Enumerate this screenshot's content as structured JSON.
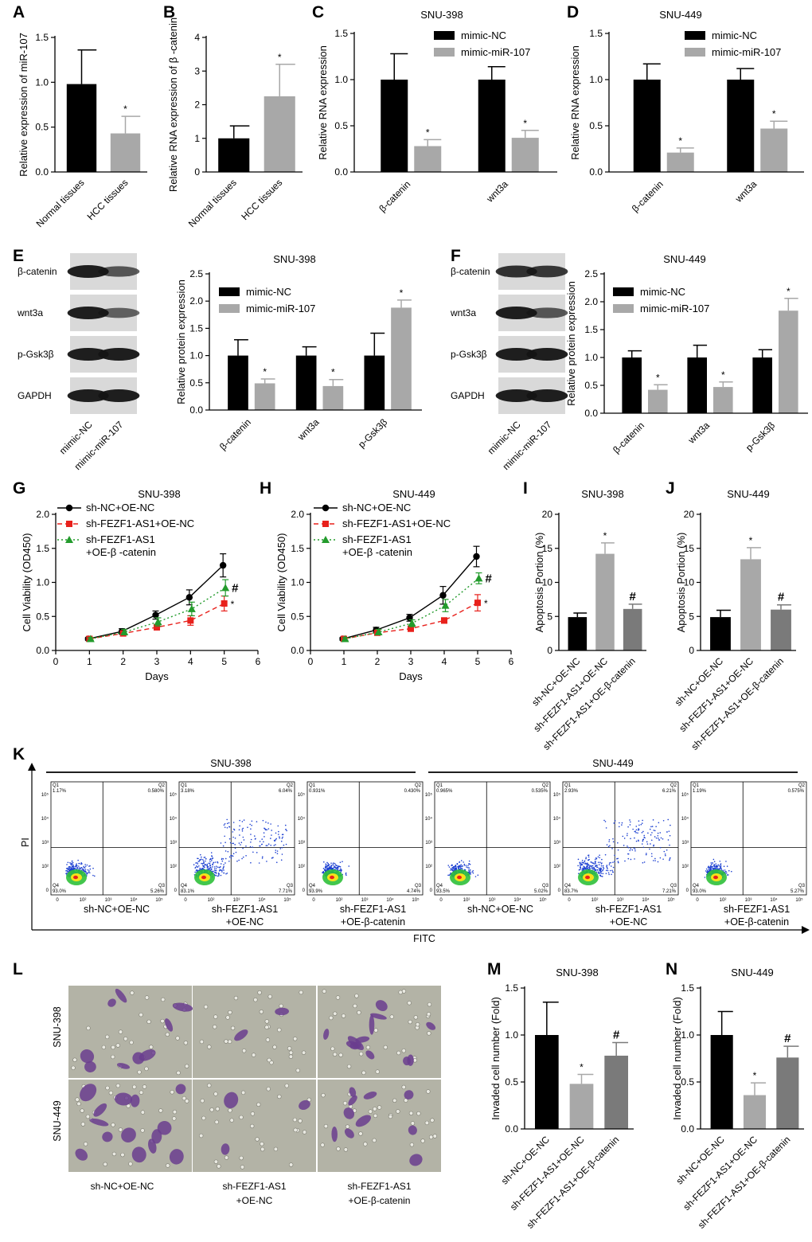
{
  "colors": {
    "black": "#000000",
    "grey": "#a8a8a8",
    "darkgrey": "#7a7a7a",
    "red": "#e8211c",
    "green": "#239b2c"
  },
  "panel_labels": [
    "A",
    "B",
    "C",
    "D",
    "E",
    "F",
    "G",
    "H",
    "I",
    "J",
    "K",
    "L",
    "M",
    "N"
  ],
  "chart_data": [
    {
      "id": "A",
      "type": "bar",
      "title": "",
      "ylabel": "Relative expression of miR-107",
      "ylim": [
        0,
        1.5
      ],
      "yticks": [
        "0.0",
        "0.5",
        "1.0",
        "1.5"
      ],
      "categories": [
        "Normal tissues",
        "HCC tissues"
      ],
      "values": [
        0.98,
        0.43
      ],
      "errors": [
        0.38,
        0.19
      ],
      "marks": [
        "",
        "*"
      ]
    },
    {
      "id": "B",
      "type": "bar",
      "title": "",
      "ylabel": "Relative RNA expression of β -catenin",
      "ylim": [
        0,
        4
      ],
      "yticks": [
        "0",
        "1",
        "2",
        "3",
        "4"
      ],
      "categories": [
        "Normal tissues",
        "HCC tissues"
      ],
      "values": [
        1.0,
        2.25
      ],
      "errors": [
        0.37,
        0.95
      ],
      "marks": [
        "",
        "*"
      ]
    },
    {
      "id": "C",
      "type": "bar",
      "title": "SNU-398",
      "ylabel": "Relative RNA expression",
      "ylim": [
        0,
        1.5
      ],
      "yticks": [
        "0.0",
        "0.5",
        "1.0",
        "1.5"
      ],
      "categories": [
        "β-catenin",
        "wnt3a"
      ],
      "series": [
        {
          "name": "mimic-NC",
          "values": [
            1.0,
            1.0
          ],
          "errors": [
            0.28,
            0.14
          ],
          "marks": [
            "",
            ""
          ]
        },
        {
          "name": "mimic-miR-107",
          "values": [
            0.28,
            0.37
          ],
          "errors": [
            0.07,
            0.08
          ],
          "marks": [
            "*",
            "*"
          ]
        }
      ]
    },
    {
      "id": "D",
      "type": "bar",
      "title": "SNU-449",
      "ylabel": "Relative RNA expression",
      "ylim": [
        0,
        1.5
      ],
      "yticks": [
        "0.0",
        "0.5",
        "1.0",
        "1.5"
      ],
      "categories": [
        "β-catenin",
        "wnt3a"
      ],
      "series": [
        {
          "name": "mimic-NC",
          "values": [
            1.0,
            1.0
          ],
          "errors": [
            0.17,
            0.12
          ],
          "marks": [
            "",
            ""
          ]
        },
        {
          "name": "mimic-miR-107",
          "values": [
            0.21,
            0.47
          ],
          "errors": [
            0.05,
            0.08
          ],
          "marks": [
            "*",
            "*"
          ]
        }
      ]
    },
    {
      "id": "E",
      "type": "bar",
      "title": "SNU-398",
      "ylabel": "Relative protein expression",
      "ylim": [
        0,
        2.5
      ],
      "yticks": [
        "0.0",
        "0.5",
        "1.0",
        "1.5",
        "2.0",
        "2.5"
      ],
      "categories": [
        "β-catenin",
        "wnt3a",
        "p-Gsk3β"
      ],
      "series": [
        {
          "name": "mimic-NC",
          "values": [
            1.0,
            1.0,
            1.0
          ],
          "errors": [
            0.29,
            0.16,
            0.41
          ],
          "marks": [
            "",
            "",
            ""
          ]
        },
        {
          "name": "mimic-miR-107",
          "values": [
            0.49,
            0.44,
            1.88
          ],
          "errors": [
            0.08,
            0.12,
            0.14
          ],
          "marks": [
            "*",
            "*",
            "*"
          ]
        }
      ]
    },
    {
      "id": "F",
      "type": "bar",
      "title": "SNU-449",
      "ylabel": "Relative protein expression",
      "ylim": [
        0,
        2.5
      ],
      "yticks": [
        "0.0",
        "0.5",
        "1.0",
        "1.5",
        "2.0",
        "2.5"
      ],
      "categories": [
        "β-catenin",
        "wnt3a",
        "p-Gsk3β"
      ],
      "series": [
        {
          "name": "mimic-NC",
          "values": [
            1.0,
            1.0,
            1.0
          ],
          "errors": [
            0.12,
            0.22,
            0.14
          ],
          "marks": [
            "",
            "",
            ""
          ]
        },
        {
          "name": "mimic-miR-107",
          "values": [
            0.42,
            0.47,
            1.84
          ],
          "errors": [
            0.09,
            0.09,
            0.22
          ],
          "marks": [
            "*",
            "*",
            "*"
          ]
        }
      ]
    },
    {
      "id": "G",
      "type": "line",
      "title": "SNU-398",
      "xlabel": "Days",
      "ylabel": "Cell Viability (OD450)",
      "xlim": [
        0,
        6
      ],
      "ylim": [
        0,
        2.0
      ],
      "xticks": [
        "0",
        "1",
        "2",
        "3",
        "4",
        "5",
        "6"
      ],
      "yticks": [
        "0.0",
        "0.5",
        "1.0",
        "1.5",
        "2.0"
      ],
      "x": [
        1,
        2,
        3,
        4,
        5
      ],
      "series": [
        {
          "name": "sh-NC+OE-NC",
          "values": [
            0.17,
            0.28,
            0.52,
            0.78,
            1.25
          ],
          "errors": [
            0.02,
            0.04,
            0.06,
            0.11,
            0.17
          ],
          "color": "#000000",
          "marker": "circle",
          "dash": "",
          "mark": ""
        },
        {
          "name": "sh-FEZF1-AS1+OE-NC",
          "values": [
            0.17,
            0.25,
            0.34,
            0.44,
            0.69
          ],
          "errors": [
            0.02,
            0.03,
            0.04,
            0.07,
            0.11
          ],
          "color": "#e8211c",
          "marker": "square",
          "dash": "6,4",
          "mark": "*"
        },
        {
          "name": "sh-FEZF1-AS1 +OE-β -catenin",
          "values": [
            0.17,
            0.27,
            0.42,
            0.61,
            0.92
          ],
          "errors": [
            0.02,
            0.04,
            0.06,
            0.1,
            0.12
          ],
          "color": "#239b2c",
          "marker": "triangle",
          "dash": "2,3",
          "mark": "#"
        }
      ]
    },
    {
      "id": "H",
      "type": "line",
      "title": "SNU-449",
      "xlabel": "Days",
      "ylabel": "Cell Viability (OD450)",
      "xlim": [
        0,
        6
      ],
      "ylim": [
        0,
        2.0
      ],
      "xticks": [
        "0",
        "1",
        "2",
        "3",
        "4",
        "5",
        "6"
      ],
      "yticks": [
        "0.0",
        "0.5",
        "1.0",
        "1.5",
        "2.0"
      ],
      "x": [
        1,
        2,
        3,
        4,
        5
      ],
      "series": [
        {
          "name": "sh-NC+OE-NC",
          "values": [
            0.17,
            0.3,
            0.48,
            0.81,
            1.38
          ],
          "errors": [
            0.02,
            0.04,
            0.05,
            0.13,
            0.15
          ],
          "color": "#000000",
          "marker": "circle",
          "dash": "",
          "mark": ""
        },
        {
          "name": "sh-FEZF1-AS1+OE-NC",
          "values": [
            0.17,
            0.26,
            0.32,
            0.44,
            0.7
          ],
          "errors": [
            0.02,
            0.03,
            0.04,
            0.04,
            0.12
          ],
          "color": "#e8211c",
          "marker": "square",
          "dash": "6,4",
          "mark": "*"
        },
        {
          "name": "sh-FEZF1-AS1 +OE-β -catenin",
          "values": [
            0.17,
            0.27,
            0.4,
            0.66,
            1.06
          ],
          "errors": [
            0.02,
            0.04,
            0.05,
            0.09,
            0.08
          ],
          "color": "#239b2c",
          "marker": "triangle",
          "dash": "2,3",
          "mark": "#"
        }
      ]
    },
    {
      "id": "I",
      "type": "bar",
      "title": "SNU-398",
      "ylabel": "Apoptosis Portion (%)",
      "ylim": [
        0,
        20
      ],
      "yticks": [
        "0",
        "5",
        "10",
        "15",
        "20"
      ],
      "categories": [
        "sh-NC+OE-NC",
        "sh-FEZF1-AS1+OE-NC",
        "sh-FEZF1-AS1+OE-β-catenin"
      ],
      "values": [
        4.9,
        14.2,
        6.1
      ],
      "errors": [
        0.6,
        1.6,
        0.7
      ],
      "marks": [
        "",
        "*",
        "#"
      ]
    },
    {
      "id": "J",
      "type": "bar",
      "title": "SNU-449",
      "ylabel": "Apoptosis Portion (%)",
      "ylim": [
        0,
        20
      ],
      "yticks": [
        "0",
        "5",
        "10",
        "15",
        "20"
      ],
      "categories": [
        "sh-NC+OE-NC",
        "sh-FEZF1-AS1+OE-NC",
        "sh-FEZF1-AS1+OE-β-catenin"
      ],
      "values": [
        4.9,
        13.4,
        6.0
      ],
      "errors": [
        1.0,
        1.7,
        0.7
      ],
      "marks": [
        "",
        "*",
        "#"
      ]
    },
    {
      "id": "M",
      "type": "bar",
      "title": "SNU-398",
      "ylabel": "Invaded cell number (Fold)",
      "ylim": [
        0,
        1.5
      ],
      "yticks": [
        "0.0",
        "0.5",
        "1.0",
        "1.5"
      ],
      "categories": [
        "sh-NC+OE-NC",
        "sh-FEZF1-AS1+OE-NC",
        "sh-FEZF1-AS1+OE-β-catenin"
      ],
      "values": [
        1.0,
        0.48,
        0.78
      ],
      "errors": [
        0.35,
        0.1,
        0.14
      ],
      "marks": [
        "",
        "*",
        "#"
      ]
    },
    {
      "id": "N",
      "type": "bar",
      "title": "SNU-449",
      "ylabel": "Invaded cell number (Fold)",
      "ylim": [
        0,
        1.5
      ],
      "yticks": [
        "0.0",
        "0.5",
        "1.0",
        "1.5"
      ],
      "categories": [
        "sh-NC+OE-NC",
        "sh-FEZF1-AS1+OE-NC",
        "sh-FEZF1-AS1+OE-β-catenin"
      ],
      "values": [
        1.0,
        0.36,
        0.76
      ],
      "errors": [
        0.25,
        0.13,
        0.12
      ],
      "marks": [
        "",
        "*",
        "#"
      ]
    }
  ],
  "blots": {
    "E": {
      "rows": [
        "β-catenin",
        "wnt3a",
        "p-Gsk3β",
        "GAPDH"
      ],
      "lanes": [
        "mimic-NC",
        "mimic-miR-107"
      ]
    },
    "F": {
      "rows": [
        "β-catenin",
        "wnt3a",
        "p-Gsk3β",
        "GAPDH"
      ],
      "lanes": [
        "mimic-NC",
        "mimic-miR-107"
      ]
    }
  },
  "flow": {
    "groups": [
      "SNU-398",
      "SNU-449"
    ],
    "ylabel": "PI",
    "xlabel": "FITC",
    "tick_labels": [
      "0",
      "10²",
      "10³",
      "10⁴",
      "10⁵"
    ],
    "plots": [
      {
        "q1": "1.17%",
        "q2": "0.580%",
        "q3": "5.26%",
        "q4": "93.0%",
        "label1": "sh-NC+OE-NC",
        "label2": ""
      },
      {
        "q1": "3.18%",
        "q2": "6.04%",
        "q3": "7.71%",
        "q4": "83.1%",
        "label1": "sh-FEZF1-AS1",
        "label2": "+OE-NC"
      },
      {
        "q1": "0.931%",
        "q2": "0.430%",
        "q3": "4.74%",
        "q4": "93.9%",
        "label1": "sh-FEZF1-AS1",
        "label2": "+OE-β-catenin"
      },
      {
        "q1": "0.965%",
        "q2": "0.535%",
        "q3": "5.02%",
        "q4": "93.5%",
        "label1": "sh-NC+OE-NC",
        "label2": ""
      },
      {
        "q1": "2.93%",
        "q2": "6.21%",
        "q3": "7.21%",
        "q4": "83.7%",
        "label1": "sh-FEZF1-AS1",
        "label2": "+OE-NC"
      },
      {
        "q1": "1.19%",
        "q2": "0.575%",
        "q3": "5.27%",
        "q4": "93.0%",
        "label1": "sh-FEZF1-AS1",
        "label2": "+OE-β-catenin"
      }
    ]
  },
  "micrographs": {
    "rows": [
      "SNU-398",
      "SNU-449"
    ],
    "cols": [
      {
        "line1": "sh-NC+OE-NC",
        "line2": ""
      },
      {
        "line1": "sh-FEZF1-AS1",
        "line2": "+OE-NC"
      },
      {
        "line1": "sh-FEZF1-AS1",
        "line2": "+OE-β-catenin"
      }
    ],
    "density": [
      [
        0.4,
        0.1,
        0.55
      ],
      [
        0.65,
        0.12,
        0.45
      ]
    ]
  }
}
